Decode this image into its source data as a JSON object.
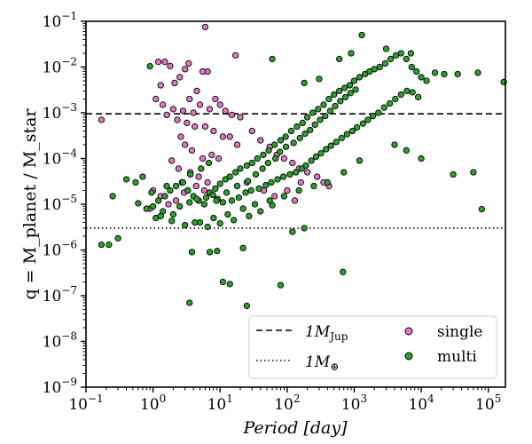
{
  "chart_data": {
    "type": "scatter",
    "title": "",
    "xlabel": "Period [day]",
    "ylabel": "q = M_planet / M_star",
    "x_scale": "log",
    "y_scale": "log",
    "xlim": [
      0.1,
      180000
    ],
    "ylim": [
      1e-09,
      0.1
    ],
    "x_ticks": [
      {
        "value": 0.1,
        "base": "10",
        "exp": "−1"
      },
      {
        "value": 1,
        "base": "10",
        "exp": "0"
      },
      {
        "value": 10,
        "base": "10",
        "exp": "1"
      },
      {
        "value": 100,
        "base": "10",
        "exp": "2"
      },
      {
        "value": 1000,
        "base": "10",
        "exp": "3"
      },
      {
        "value": 10000,
        "base": "10",
        "exp": "4"
      },
      {
        "value": 100000,
        "base": "10",
        "exp": "5"
      }
    ],
    "y_ticks": [
      {
        "value": 1e-09,
        "base": "10",
        "exp": "−9"
      },
      {
        "value": 1e-08,
        "base": "10",
        "exp": "−8"
      },
      {
        "value": 1e-07,
        "base": "10",
        "exp": "−7"
      },
      {
        "value": 1e-06,
        "base": "10",
        "exp": "−6"
      },
      {
        "value": 1e-05,
        "base": "10",
        "exp": "−5"
      },
      {
        "value": 0.0001,
        "base": "10",
        "exp": "−4"
      },
      {
        "value": 0.001,
        "base": "10",
        "exp": "−3"
      },
      {
        "value": 0.01,
        "base": "10",
        "exp": "−2"
      },
      {
        "value": 0.1,
        "base": "10",
        "exp": "−1"
      }
    ],
    "reference_lines": [
      {
        "name": "1M_Jup",
        "label_main": "1M",
        "label_sub": "Jup",
        "y": 0.00095,
        "style": "dashed"
      },
      {
        "name": "1M_Earth",
        "label_main": "1M",
        "label_sub": "⊕",
        "y": 3e-06,
        "style": "dotted"
      }
    ],
    "legend_placement": "bottom-right",
    "series": [
      {
        "name": "single",
        "color": "#e377c2",
        "points": [
          [
            0.17,
            0.0007
          ],
          [
            1.2,
            0.013
          ],
          [
            1.5,
            0.013
          ],
          [
            1.8,
            0.0105
          ],
          [
            2.1,
            0.0045
          ],
          [
            2.5,
            0.006
          ],
          [
            3.0,
            0.009
          ],
          [
            3.4,
            0.012
          ],
          [
            6.0,
            0.075
          ],
          [
            17,
            0.018
          ],
          [
            6.5,
            0.008
          ],
          [
            5.5,
            0.008
          ],
          [
            1.3,
            0.004
          ],
          [
            4.5,
            0.003
          ],
          [
            3.5,
            0.002
          ],
          [
            1.1,
            0.002
          ],
          [
            1.4,
            0.0015
          ],
          [
            2.0,
            0.0012
          ],
          [
            2.8,
            0.0011
          ],
          [
            4.0,
            0.001
          ],
          [
            5.0,
            0.0015
          ],
          [
            7.0,
            0.0012
          ],
          [
            8.5,
            0.002
          ],
          [
            10,
            0.0015
          ],
          [
            12,
            0.0011
          ],
          [
            15,
            0.0009
          ],
          [
            20,
            0.0008
          ],
          [
            1.6,
            0.0009
          ],
          [
            2.3,
            0.0007
          ],
          [
            3.2,
            0.0006
          ],
          [
            4.2,
            0.0005
          ],
          [
            6.0,
            0.0005
          ],
          [
            8.0,
            0.0004
          ],
          [
            11,
            0.0003
          ],
          [
            14,
            0.0003
          ],
          [
            18,
            0.0002
          ],
          [
            2.6,
            0.0003
          ],
          [
            3.0,
            0.0002
          ],
          [
            3.8,
            0.00015
          ],
          [
            5.5,
            0.0001
          ],
          [
            7.5,
            0.00012
          ],
          [
            9.5,
            0.0001
          ],
          [
            1.9,
            9e-05
          ],
          [
            2.4,
            6e-05
          ],
          [
            3.6,
            5e-05
          ],
          [
            4.8,
            4e-05
          ],
          [
            6.5,
            3e-05
          ],
          [
            30,
            0.0004
          ],
          [
            40,
            0.00025
          ],
          [
            55,
            0.00018
          ],
          [
            70,
            0.00012
          ],
          [
            90,
            0.0001
          ],
          [
            120,
            8e-05
          ],
          [
            150,
            6e-05
          ],
          [
            200,
            5e-05
          ],
          [
            280,
            4e-05
          ],
          [
            350,
            3e-05
          ],
          [
            420,
            2.5e-05
          ],
          [
            1.0,
            2e-05
          ],
          [
            1.3,
            1.5e-05
          ],
          [
            1.7,
            1e-05
          ],
          [
            2.2,
            1.2e-05
          ],
          [
            2.9,
            1.8e-05
          ],
          [
            3.3,
            2e-05
          ],
          [
            4.4,
            2.5e-05
          ],
          [
            5.8,
            2e-05
          ],
          [
            0.9,
            8e-06
          ],
          [
            25,
            3e-05
          ],
          [
            45,
            2e-05
          ],
          [
            65,
            1.5e-05
          ],
          [
            100,
            2e-05
          ],
          [
            130,
            1.2e-05
          ],
          [
            160,
            3e-05
          ]
        ]
      },
      {
        "name": "multi",
        "color": "#2ca02c",
        "points": [
          [
            0.17,
            1.3e-06
          ],
          [
            0.22,
            1.3e-06
          ],
          [
            0.3,
            1.8e-06
          ],
          [
            0.25,
            1.5e-05
          ],
          [
            0.4,
            3.5e-05
          ],
          [
            0.55,
            3e-05
          ],
          [
            0.7,
            4e-05
          ],
          [
            0.9,
            0.0104
          ],
          [
            0.6,
            1.05e-05
          ],
          [
            0.8,
            8e-06
          ],
          [
            1.0,
            9e-06
          ],
          [
            1.2,
            1.2e-05
          ],
          [
            1.5,
            1.5e-05
          ],
          [
            1.8,
            2e-05
          ],
          [
            2.2,
            2.5e-05
          ],
          [
            2.7,
            3e-05
          ],
          [
            3.3,
            2e-05
          ],
          [
            4.0,
            1.5e-05
          ],
          [
            4.8,
            1.2e-05
          ],
          [
            5.8,
            1e-05
          ],
          [
            7.0,
            1.8e-05
          ],
          [
            8.5,
            2.2e-05
          ],
          [
            10,
            2.8e-05
          ],
          [
            12,
            3.5e-05
          ],
          [
            14,
            4e-05
          ],
          [
            17,
            5e-05
          ],
          [
            20,
            6e-05
          ],
          [
            25,
            7e-05
          ],
          [
            30,
            8e-05
          ],
          [
            36,
            0.0001
          ],
          [
            44,
            0.00012
          ],
          [
            53,
            0.00015
          ],
          [
            65,
            0.0002
          ],
          [
            80,
            0.00025
          ],
          [
            95,
            0.0003
          ],
          [
            115,
            0.0004
          ],
          [
            140,
            0.0005
          ],
          [
            170,
            0.0006
          ],
          [
            200,
            0.0008
          ],
          [
            240,
            0.001
          ],
          [
            290,
            0.0012
          ],
          [
            350,
            0.0015
          ],
          [
            420,
            0.002
          ],
          [
            500,
            0.0025
          ],
          [
            600,
            0.003
          ],
          [
            720,
            0.0035
          ],
          [
            860,
            0.004
          ],
          [
            1000,
            0.005
          ],
          [
            1200,
            0.006
          ],
          [
            1450,
            0.007
          ],
          [
            1700,
            0.008
          ],
          [
            2000,
            0.009
          ],
          [
            2400,
            0.01
          ],
          [
            2900,
            0.012
          ],
          [
            3500,
            0.015
          ],
          [
            4200,
            0.018
          ],
          [
            5000,
            0.02
          ],
          [
            6000,
            0.015
          ],
          [
            7200,
            0.01
          ],
          [
            8500,
            0.008
          ],
          [
            10000,
            0.006
          ],
          [
            12000,
            0.005
          ],
          [
            1300,
            0.05
          ],
          [
            3000,
            0.025
          ],
          [
            7000,
            0.02
          ],
          [
            900,
            0.02
          ],
          [
            600,
            0.015
          ],
          [
            60,
            0.015
          ],
          [
            300,
            0.0055
          ],
          [
            180,
            0.0045
          ],
          [
            16000,
            0.0075
          ],
          [
            22000,
            0.007
          ],
          [
            35000,
            0.007
          ],
          [
            70000,
            0.0075
          ],
          [
            170000,
            0.0047
          ],
          [
            30000,
            4.5e-05
          ],
          [
            60000,
            5e-05
          ],
          [
            80000,
            7.8e-06
          ],
          [
            1200,
            9e-05
          ],
          [
            4000,
            0.0002
          ],
          [
            6000,
            0.00015
          ],
          [
            10000,
            0.0001
          ],
          [
            700,
            5e-05
          ],
          [
            400,
            3e-05
          ],
          [
            250,
            2.5e-05
          ],
          [
            150,
            2e-05
          ],
          [
            90,
            1.5e-05
          ],
          [
            55,
            1.2e-05
          ],
          [
            33,
            1e-05
          ],
          [
            22,
            8e-06
          ],
          [
            13,
            6e-06
          ],
          [
            8,
            5e-06
          ],
          [
            5,
            4e-06
          ],
          [
            3,
            3.5e-06
          ],
          [
            2,
            6e-06
          ],
          [
            1.4,
            7e-06
          ],
          [
            1.1,
            5e-06
          ],
          [
            2.5,
            9e-06
          ],
          [
            3.5,
            1.1e-05
          ],
          [
            4.5,
            1.3e-05
          ],
          [
            6.2,
            1.4e-05
          ],
          [
            7.8,
            1.6e-05
          ],
          [
            9.2,
            1.3e-05
          ],
          [
            11,
            1.1e-05
          ],
          [
            15,
            1.2e-05
          ],
          [
            19,
            1.4e-05
          ],
          [
            24,
            1.8e-05
          ],
          [
            29,
            2e-05
          ],
          [
            38,
            2.2e-05
          ],
          [
            48,
            2.6e-05
          ],
          [
            58,
            3e-05
          ],
          [
            72,
            3.5e-05
          ],
          [
            88,
            4e-05
          ],
          [
            110,
            4.5e-05
          ],
          [
            135,
            5e-05
          ],
          [
            165,
            6e-05
          ],
          [
            190,
            7e-05
          ],
          [
            230,
            9e-05
          ],
          [
            270,
            0.00011
          ],
          [
            320,
            0.00013
          ],
          [
            380,
            0.00016
          ],
          [
            450,
            0.00019
          ],
          [
            540,
            0.00023
          ],
          [
            650,
            0.00028
          ],
          [
            780,
            0.00034
          ],
          [
            940,
            0.0004
          ],
          [
            1100,
            0.00048
          ],
          [
            1350,
            0.00058
          ],
          [
            1600,
            0.0007
          ],
          [
            1900,
            0.00085
          ],
          [
            2300,
            0.001
          ],
          [
            2800,
            0.0013
          ],
          [
            3400,
            0.0016
          ],
          [
            4100,
            0.002
          ],
          [
            5000,
            0.0025
          ],
          [
            6100,
            0.003
          ],
          [
            7400,
            0.0028
          ],
          [
            9000,
            0.0022
          ],
          [
            3.6,
            4.5e-05
          ],
          [
            5.2,
            6e-05
          ],
          [
            6.8,
            8e-05
          ],
          [
            2.8,
            3e-05
          ],
          [
            1.6,
            2.5e-05
          ],
          [
            0.95,
            1.8e-05
          ],
          [
            14,
            1.8e-07
          ],
          [
            11,
            2e-07
          ],
          [
            25,
            6e-08
          ],
          [
            3.5,
            7e-08
          ],
          [
            3.8,
            9e-07
          ],
          [
            7.0,
            9e-07
          ],
          [
            22,
            1.1e-06
          ],
          [
            120,
            2.5e-06
          ],
          [
            180,
            3e-06
          ],
          [
            680,
            3.3e-07
          ],
          [
            80,
            1.7e-07
          ],
          [
            9,
            9.5e-07
          ],
          [
            60,
            9.5e-06
          ],
          [
            40,
            7e-06
          ],
          [
            27,
            5.5e-06
          ],
          [
            16,
            4.5e-06
          ],
          [
            10,
            3.8e-06
          ],
          [
            6.5,
            3.2e-06
          ],
          [
            4.2,
            4e-06
          ],
          [
            1.3,
            5.5e-06
          ],
          [
            1.9,
            4.3e-06
          ],
          [
            8.8,
            1.2e-05
          ],
          [
            12.5,
            1.8e-05
          ],
          [
            18,
            2.5e-05
          ],
          [
            26,
            3.2e-05
          ],
          [
            34,
            4.5e-05
          ],
          [
            43,
            6e-05
          ],
          [
            52,
            8e-05
          ],
          [
            67,
            0.0001
          ],
          [
            78,
            0.00014
          ],
          [
            96,
            0.00018
          ],
          [
            125,
            0.00022
          ],
          [
            155,
            0.00028
          ],
          [
            185,
            0.00035
          ],
          [
            220,
            0.00042
          ],
          [
            260,
            0.00055
          ],
          [
            310,
            0.0007
          ],
          [
            370,
            0.00085
          ],
          [
            440,
            0.0011
          ],
          [
            520,
            0.0014
          ],
          [
            620,
            0.0018
          ],
          [
            740,
            0.0022
          ],
          [
            880,
            0.0027
          ],
          [
            1050,
            0.0032
          ]
        ]
      }
    ]
  }
}
